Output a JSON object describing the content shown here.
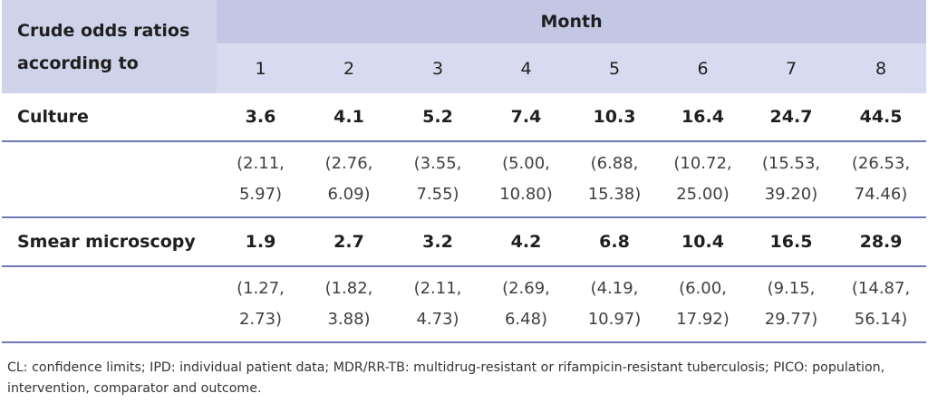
{
  "header": {
    "label": "Crude odds ratios according to",
    "group": "Month",
    "months": [
      "1",
      "2",
      "3",
      "4",
      "5",
      "6",
      "7",
      "8"
    ]
  },
  "rows": [
    {
      "label": "Culture",
      "values": [
        "3.6",
        "4.1",
        "5.2",
        "7.4",
        "10.3",
        "16.4",
        "24.7",
        "44.5"
      ],
      "ci": [
        [
          "(2.11,",
          "5.97)"
        ],
        [
          "(2.76,",
          "6.09)"
        ],
        [
          "(3.55,",
          "7.55)"
        ],
        [
          "(5.00,",
          "10.80)"
        ],
        [
          "(6.88,",
          "15.38)"
        ],
        [
          "(10.72,",
          "25.00)"
        ],
        [
          "(15.53,",
          "39.20)"
        ],
        [
          "(26.53,",
          "74.46)"
        ]
      ]
    },
    {
      "label": "Smear microscopy",
      "values": [
        "1.9",
        "2.7",
        "3.2",
        "4.2",
        "6.8",
        "10.4",
        "16.5",
        "28.9"
      ],
      "ci": [
        [
          "(1.27,",
          "2.73)"
        ],
        [
          "(1.82,",
          "3.88)"
        ],
        [
          "(2.11,",
          "4.73)"
        ],
        [
          "(2.69,",
          "6.48)"
        ],
        [
          "(4.19,",
          "10.97)"
        ],
        [
          "(6.00,",
          "17.92)"
        ],
        [
          "(9.15,",
          "29.77)"
        ],
        [
          "(14.87,",
          "56.14)"
        ]
      ]
    }
  ],
  "footnote": "CL: confidence limits; IPD: individual patient data; MDR/RR-TB: multidrug-resistant or rifampicin-resistant tuberculosis; PICO: population, intervention, comparator and outcome."
}
